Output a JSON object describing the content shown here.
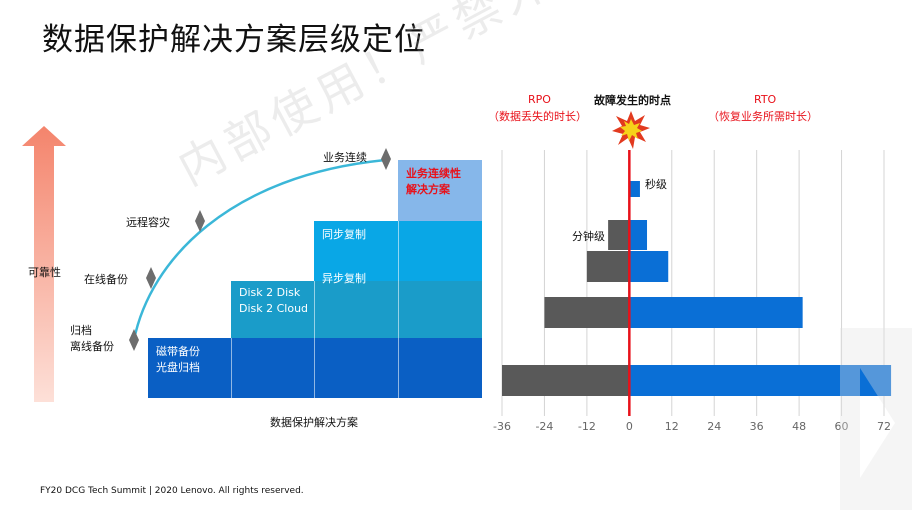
{
  "title": "数据保护解决方案层级定位",
  "footer": "FY20 DCG Tech Summit | 2020 Lenovo. All rights reserved.",
  "watermark": "内部使用！严禁外传！",
  "left": {
    "y_axis_label": "可靠性",
    "x_axis_label": "数据保护解决方案",
    "curve_points": [
      {
        "label1": "归档",
        "label2": "离线备份"
      },
      {
        "label1": "在线备份"
      },
      {
        "label1": "远程容灾"
      },
      {
        "label1": "业务连续"
      }
    ],
    "blocks": {
      "tape": {
        "line1": "磁带备份",
        "line2": "光盘归档"
      },
      "disk": {
        "line1": "Disk 2 Disk",
        "line2": "Disk 2 Cloud"
      },
      "async": "异步复制",
      "sync": "同步复制",
      "continuity": {
        "line1": "业务连续性",
        "line2": "解决方案"
      }
    },
    "colors": {
      "tape": "#0a5fc4",
      "disk": "#1a9cc9",
      "replication": "#09a7e6",
      "continuity": "#86b7ea",
      "curve": "#3bb7d8",
      "arrow": "#f49a86"
    }
  },
  "right": {
    "rpo_title": "RPO",
    "rpo_sub": "（数据丢失的时长）",
    "fault_label": "故障发生的时点",
    "rto_title": "RTO",
    "rto_sub": "（恢复业务所需时长）",
    "label_seconds": "秒级",
    "label_minutes": "分钟级"
  },
  "chart_data": {
    "type": "bar",
    "orientation": "horizontal",
    "title": "",
    "xlabel": "",
    "ylabel": "",
    "xlim": [
      -36,
      72
    ],
    "x_ticks": [
      -36,
      -24,
      -12,
      0,
      12,
      24,
      36,
      48,
      60,
      72
    ],
    "grid": true,
    "categories": [
      "秒级",
      "分钟级",
      "",
      "",
      ""
    ],
    "series": [
      {
        "name": "RPO",
        "color": "#595959",
        "values": [
          0,
          -6,
          -12,
          -24,
          -36
        ]
      },
      {
        "name": "RTO",
        "color": "#0a6fd6",
        "values": [
          3,
          5,
          11,
          49,
          74
        ]
      }
    ]
  }
}
